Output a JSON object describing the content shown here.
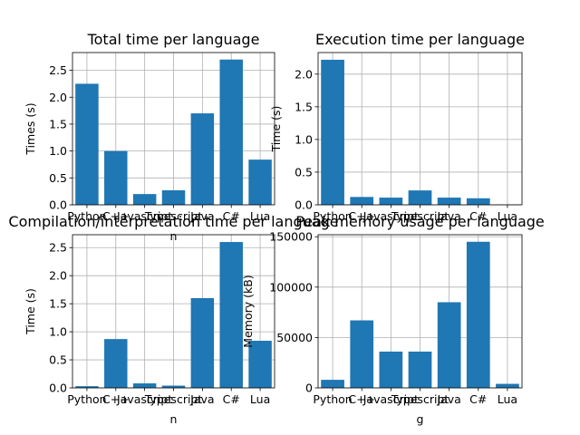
{
  "chart_data": [
    {
      "type": "bar",
      "title": "Total time per language",
      "xlabel": "n",
      "ylabel": "Times (s)",
      "categories": [
        "Python",
        "C++",
        "Javascript",
        "Typescript",
        "Java",
        "C#",
        "Lua"
      ],
      "values": [
        2.25,
        1.0,
        0.2,
        0.27,
        1.7,
        2.7,
        0.84
      ],
      "ylim": [
        0,
        2.83
      ],
      "yticks": [
        "0.0",
        "0.5",
        "1.0",
        "1.5",
        "2.0",
        "2.5"
      ],
      "grid": true,
      "color": "#1f77b4"
    },
    {
      "type": "bar",
      "title": "Execution time per language",
      "xlabel": "",
      "ylabel": "Time (s)",
      "categories": [
        "Python",
        "C++",
        "Javascript",
        "Typescript",
        "Java",
        "C#",
        "Lua"
      ],
      "values": [
        2.22,
        0.12,
        0.11,
        0.22,
        0.11,
        0.1,
        0.005
      ],
      "ylim": [
        0,
        2.33
      ],
      "yticks": [
        "0.0",
        "0.5",
        "1.0",
        "1.5",
        "2.0"
      ],
      "grid": true,
      "color": "#1f77b4"
    },
    {
      "type": "bar",
      "title": "Compilation/interpretation time per language",
      "xlabel": "n",
      "ylabel": "Time (s)",
      "categories": [
        "Python",
        "C++",
        "Javascript",
        "Typescript",
        "Java",
        "C#",
        "Lua"
      ],
      "values": [
        0.03,
        0.87,
        0.08,
        0.04,
        1.6,
        2.6,
        0.84
      ],
      "ylim": [
        0,
        2.73
      ],
      "yticks": [
        "0.0",
        "0.5",
        "1.0",
        "1.5",
        "2.0",
        "2.5"
      ],
      "grid": true,
      "color": "#1f77b4"
    },
    {
      "type": "bar",
      "title": "Peak memory usage per language",
      "xlabel": "g",
      "ylabel": "Memory (kB)",
      "categories": [
        "Python",
        "C++",
        "Javascript",
        "Typescript",
        "Java",
        "C#",
        "Lua"
      ],
      "values": [
        8000,
        67000,
        36000,
        36000,
        85000,
        145000,
        4000
      ],
      "ylim": [
        0,
        152000
      ],
      "yticks": [
        "0",
        "50000",
        "100000",
        "150000"
      ],
      "grid": true,
      "color": "#1f77b4"
    }
  ]
}
